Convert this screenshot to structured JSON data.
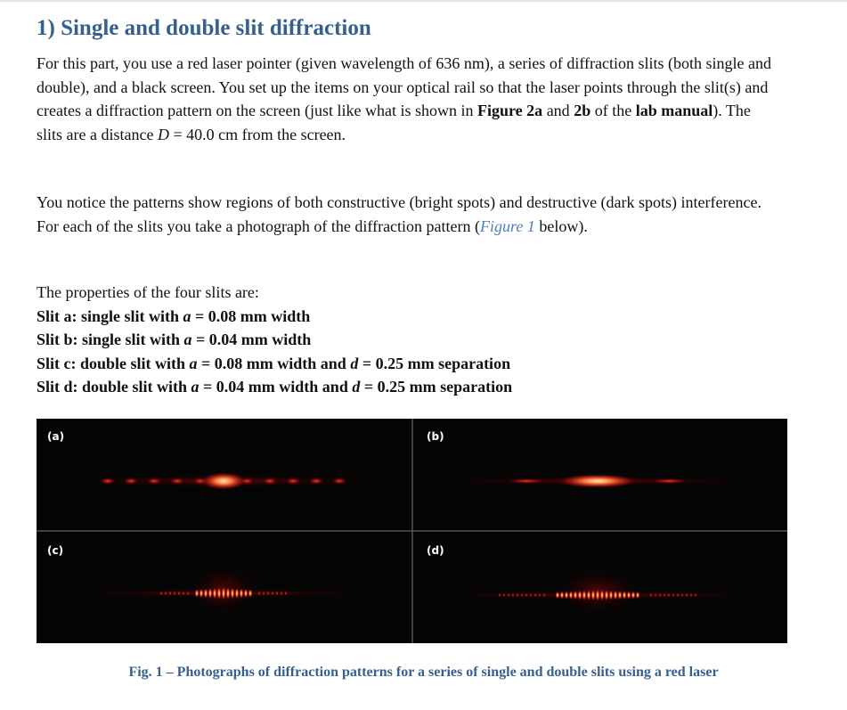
{
  "section_title": "1) Single and double slit diffraction",
  "paragraph_1": [
    "For this part, you use a red laser pointer (given wavelength of 636 nm), a series of diffraction slits (both single and double), and a black screen. You set up the items on your optical rail so that the laser points through the slit(s) and creates a diffraction pattern on the screen (just like what is shown in ",
    "Figure 2a",
    " and ",
    "2b",
    " of the ",
    "lab manual",
    "). The slits are a distance ",
    "D",
    " = 40.0 cm from the screen."
  ],
  "paragraph_2": [
    "You notice the patterns show regions of both constructive (bright spots) and destructive (dark spots) interference. For each of the slits you take a photograph of the diffraction pattern (",
    "Figure 1",
    " below)."
  ],
  "properties_intro": "The properties of the four slits are:",
  "slits": [
    [
      "Slit a: single slit with ",
      "a",
      " = 0.08 mm width"
    ],
    [
      "Slit b: single slit with ",
      "a",
      " = 0.04 mm width"
    ],
    [
      "Slit c: double slit with ",
      "a",
      " = 0.08 mm width and ",
      "d",
      " = 0.25 mm separation"
    ],
    [
      "Slit d: double slit with ",
      "a",
      " = 0.04 mm width and ",
      "d",
      " = 0.25 mm separation"
    ]
  ],
  "figure": {
    "panel_labels": [
      "(a)",
      "(b)",
      "(c)",
      "(d)"
    ],
    "caption": "Fig. 1 – Photographs of diffraction patterns for a series of single and double slits using a red laser"
  }
}
